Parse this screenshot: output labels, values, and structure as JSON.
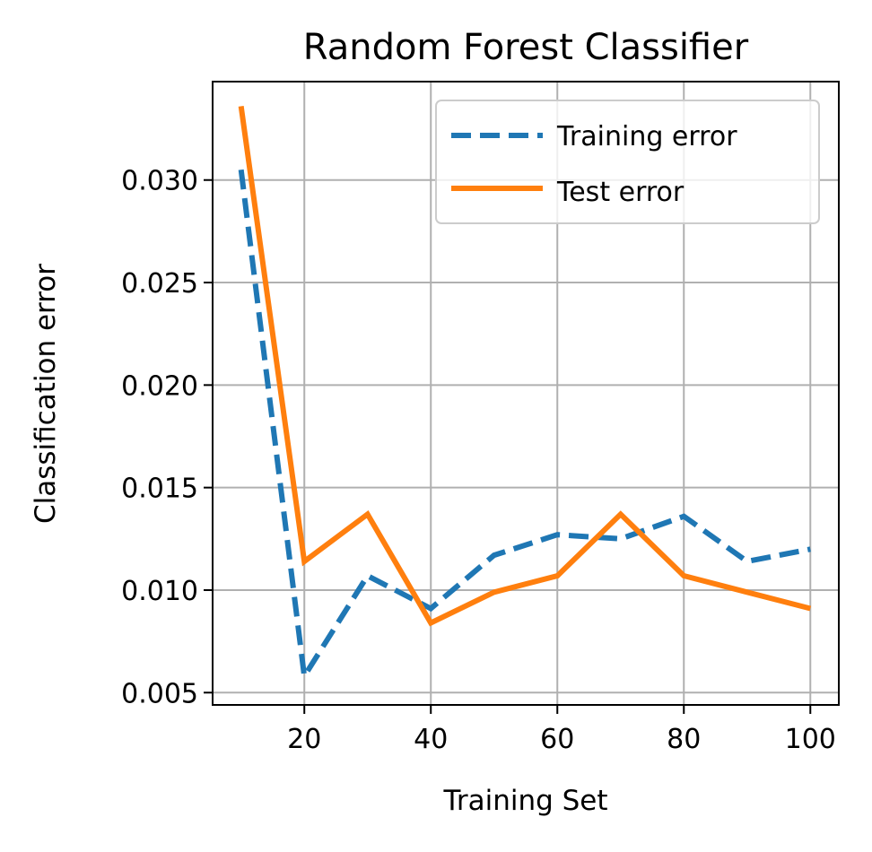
{
  "chart_data": {
    "type": "line",
    "title": "Random Forest Classifier",
    "xlabel": "Training Set",
    "ylabel": "Classification error",
    "xlim": [
      5.5,
      104.5
    ],
    "ylim": [
      0.0044,
      0.0348
    ],
    "xticks": [
      20,
      40,
      60,
      80,
      100
    ],
    "xtick_labels": [
      "20",
      "40",
      "60",
      "80",
      "100"
    ],
    "yticks": [
      0.005,
      0.01,
      0.015,
      0.02,
      0.025,
      0.03
    ],
    "ytick_labels": [
      "0.005",
      "0.010",
      "0.015",
      "0.020",
      "0.025",
      "0.030"
    ],
    "grid": true,
    "legend_position": "top-right",
    "x": [
      10,
      20,
      30,
      40,
      50,
      60,
      70,
      80,
      90,
      100
    ],
    "series": [
      {
        "name": "Training error",
        "style": "dashed",
        "color": "#1f77b4",
        "values": [
          0.0305,
          0.0058,
          0.0107,
          0.0091,
          0.0117,
          0.0127,
          0.0125,
          0.0136,
          0.0114,
          0.012
        ]
      },
      {
        "name": "Test error",
        "style": "solid",
        "color": "#ff7f0e",
        "values": [
          0.0336,
          0.0114,
          0.0137,
          0.0084,
          0.0099,
          0.0107,
          0.0137,
          0.0107,
          0.0099,
          0.0091
        ]
      }
    ]
  }
}
